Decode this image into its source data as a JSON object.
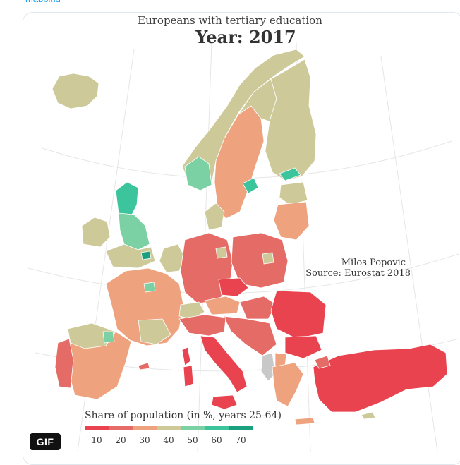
{
  "header": {
    "link_text": "mapping"
  },
  "map": {
    "title": "Europeans with tertiary education",
    "subtitle": "Year: 2017",
    "author": "Milos Popovic",
    "source": "Source: Eurostat 2018"
  },
  "legend": {
    "title": "Share of population (in %, years 25-64)",
    "ticks": [
      "10",
      "20",
      "30",
      "40",
      "50",
      "60",
      "70"
    ],
    "colors": [
      "#e8434e",
      "#e56b67",
      "#eea27d",
      "#cdc998",
      "#7bd1a4",
      "#3cc59c",
      "#1aa07e"
    ]
  },
  "badge": {
    "label": "GIF"
  },
  "colors": {
    "low": "#e8434e",
    "mid_low": "#eea27d",
    "mid": "#cdc998",
    "high": "#3cc59c",
    "no_data": "#c8c8c8"
  }
}
